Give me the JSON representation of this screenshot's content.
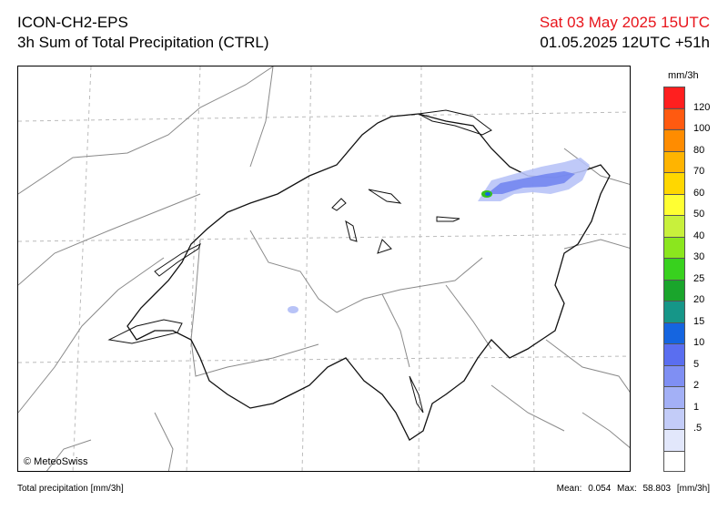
{
  "header": {
    "model": "ICON-CH2-EPS",
    "product": "3h Sum of Total Precipitation (CTRL)",
    "valid_time": "Sat 03 May 2025 15UTC",
    "run_time": "01.05.2025 12UTC +51h"
  },
  "map": {
    "copyright": "© MeteoSwiss",
    "precip_areas": [
      {
        "label": "northeast band",
        "intensity": "5-10 mm/3h",
        "color": "#6f82f0"
      },
      {
        "label": "core near Lake Constance",
        "intensity": "40-50 mm/3h",
        "color": "#33c21e"
      },
      {
        "label": "small cell west",
        "intensity": "1-2 mm/3h",
        "color": "#b8c3f7"
      }
    ]
  },
  "legend": {
    "unit": "mm/3h",
    "colors": [
      "#ff1f1f",
      "#ff5a10",
      "#ff8c00",
      "#ffb400",
      "#ffd700",
      "#ffff33",
      "#c8f03c",
      "#8be61e",
      "#38d11e",
      "#1aa52c",
      "#169688",
      "#1565e0",
      "#5a6ef0",
      "#7f8ff3",
      "#a3b0f6",
      "#c3ccf8",
      "#e2e7fb",
      "#ffffff"
    ],
    "labels": [
      "120",
      "100",
      "80",
      "70",
      "60",
      "50",
      "40",
      "30",
      "25",
      "20",
      "15",
      "10",
      "5",
      "2",
      "1",
      ".5"
    ]
  },
  "footer": {
    "left": "Total precipitation [mm/3h]",
    "mean_label": "Mean:",
    "mean_value": "0.054",
    "max_label": "Max:",
    "max_value": "58.803",
    "max_unit": "[mm/3h]"
  }
}
